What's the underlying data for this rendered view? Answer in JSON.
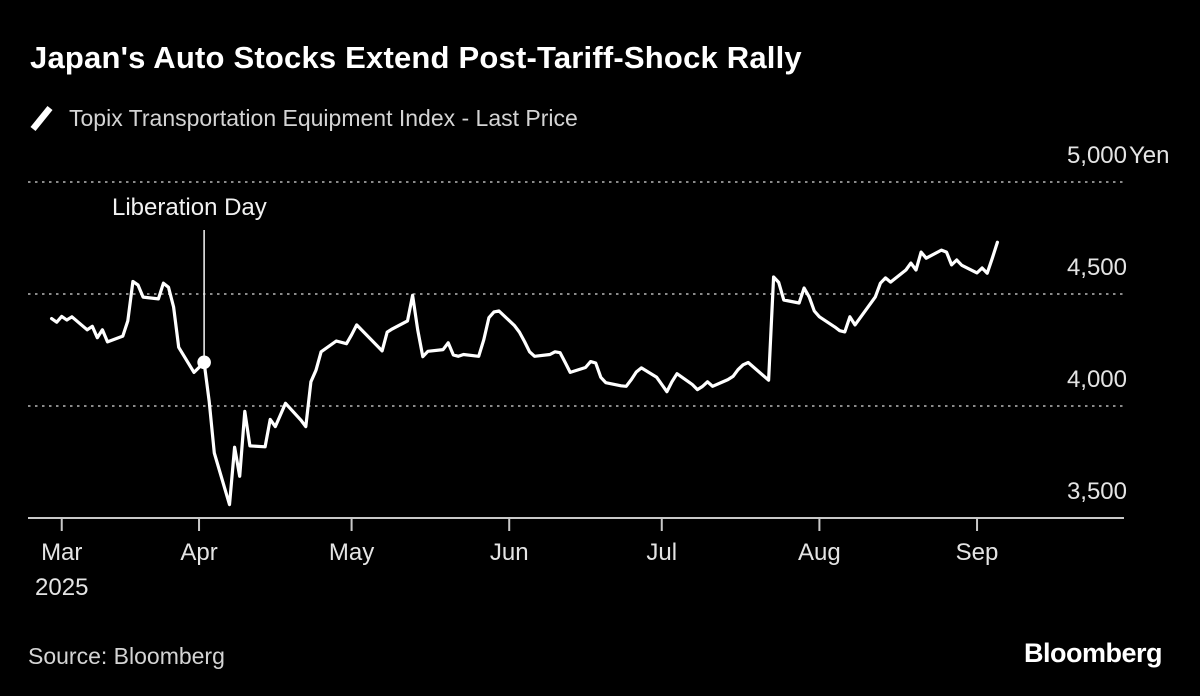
{
  "title": "Japan's Auto Stocks Extend Post-Tariff-Shock Rally",
  "legend": {
    "label": "Topix Transportation Equipment Index - Last Price"
  },
  "footer": {
    "source": "Source: Bloomberg",
    "logo": "Bloomberg"
  },
  "colors": {
    "background": "#000000",
    "line": "#ffffff",
    "grid": "#8a8a8a",
    "axis": "#c9c9c9",
    "text_primary": "#ffffff",
    "text_secondary": "#d4d4d4",
    "tick_label": "#e4e4e4"
  },
  "chart_data": {
    "type": "line",
    "title": "Japan's Auto Stocks Extend Post-Tariff-Shock Rally",
    "series_name": "Topix Transportation Equipment Index - Last Price",
    "unit": "Yen",
    "ylim": [
      3500,
      5000
    ],
    "grid": "dotted-horizontal",
    "legend_position": "top-left",
    "y_ticks": [
      {
        "label": "5,000",
        "suffix": "Yen",
        "value": 5000
      },
      {
        "label": "4,500",
        "value": 4500
      },
      {
        "label": "4,000",
        "value": 4000
      },
      {
        "label": "3,500",
        "value": 3500
      }
    ],
    "x_ticks": [
      {
        "label": "Mar",
        "sublabel": "2025",
        "date": "2025-03-05"
      },
      {
        "label": "Apr",
        "date": "2025-04-01"
      },
      {
        "label": "May",
        "date": "2025-05-01"
      },
      {
        "label": "Jun",
        "date": "2025-06-01"
      },
      {
        "label": "Jul",
        "date": "2025-07-01"
      },
      {
        "label": "Aug",
        "date": "2025-08-01"
      },
      {
        "label": "Sep",
        "date": "2025-09-01"
      }
    ],
    "annotation": {
      "text": "Liberation Day",
      "date": "2025-04-02",
      "value": 4195
    },
    "points": [
      [
        "2025-03-03",
        4390
      ],
      [
        "2025-03-04",
        4374
      ],
      [
        "2025-03-05",
        4400
      ],
      [
        "2025-03-06",
        4384
      ],
      [
        "2025-03-07",
        4398
      ],
      [
        "2025-03-10",
        4340
      ],
      [
        "2025-03-11",
        4356
      ],
      [
        "2025-03-12",
        4305
      ],
      [
        "2025-03-13",
        4340
      ],
      [
        "2025-03-14",
        4286
      ],
      [
        "2025-03-17",
        4312
      ],
      [
        "2025-03-18",
        4380
      ],
      [
        "2025-03-19",
        4556
      ],
      [
        "2025-03-20",
        4540
      ],
      [
        "2025-03-21",
        4486
      ],
      [
        "2025-03-24",
        4478
      ],
      [
        "2025-03-25",
        4548
      ],
      [
        "2025-03-26",
        4530
      ],
      [
        "2025-03-27",
        4442
      ],
      [
        "2025-03-28",
        4262
      ],
      [
        "2025-03-31",
        4150
      ],
      [
        "2025-04-01",
        4172
      ],
      [
        "2025-04-02",
        4195
      ],
      [
        "2025-04-03",
        4020
      ],
      [
        "2025-04-04",
        3790
      ],
      [
        "2025-04-07",
        3560
      ],
      [
        "2025-04-08",
        3816
      ],
      [
        "2025-04-09",
        3686
      ],
      [
        "2025-04-10",
        3976
      ],
      [
        "2025-04-11",
        3822
      ],
      [
        "2025-04-14",
        3818
      ],
      [
        "2025-04-15",
        3940
      ],
      [
        "2025-04-16",
        3908
      ],
      [
        "2025-04-17",
        3960
      ],
      [
        "2025-04-18",
        4012
      ],
      [
        "2025-04-21",
        3938
      ],
      [
        "2025-04-22",
        3908
      ],
      [
        "2025-04-23",
        4108
      ],
      [
        "2025-04-24",
        4160
      ],
      [
        "2025-04-25",
        4242
      ],
      [
        "2025-04-28",
        4290
      ],
      [
        "2025-04-30",
        4278
      ],
      [
        "2025-05-01",
        4318
      ],
      [
        "2025-05-02",
        4362
      ],
      [
        "2025-05-07",
        4246
      ],
      [
        "2025-05-08",
        4330
      ],
      [
        "2025-05-09",
        4344
      ],
      [
        "2025-05-12",
        4380
      ],
      [
        "2025-05-13",
        4494
      ],
      [
        "2025-05-14",
        4340
      ],
      [
        "2025-05-15",
        4220
      ],
      [
        "2025-05-16",
        4244
      ],
      [
        "2025-05-19",
        4252
      ],
      [
        "2025-05-20",
        4282
      ],
      [
        "2025-05-21",
        4228
      ],
      [
        "2025-05-22",
        4222
      ],
      [
        "2025-05-23",
        4230
      ],
      [
        "2025-05-26",
        4222
      ],
      [
        "2025-05-27",
        4296
      ],
      [
        "2025-05-28",
        4394
      ],
      [
        "2025-05-29",
        4420
      ],
      [
        "2025-05-30",
        4424
      ],
      [
        "2025-06-02",
        4360
      ],
      [
        "2025-06-03",
        4330
      ],
      [
        "2025-06-04",
        4288
      ],
      [
        "2025-06-05",
        4242
      ],
      [
        "2025-06-06",
        4222
      ],
      [
        "2025-06-09",
        4230
      ],
      [
        "2025-06-10",
        4242
      ],
      [
        "2025-06-11",
        4238
      ],
      [
        "2025-06-12",
        4194
      ],
      [
        "2025-06-13",
        4150
      ],
      [
        "2025-06-16",
        4172
      ],
      [
        "2025-06-17",
        4198
      ],
      [
        "2025-06-18",
        4192
      ],
      [
        "2025-06-19",
        4128
      ],
      [
        "2025-06-20",
        4104
      ],
      [
        "2025-06-23",
        4090
      ],
      [
        "2025-06-24",
        4088
      ],
      [
        "2025-06-25",
        4118
      ],
      [
        "2025-06-26",
        4152
      ],
      [
        "2025-06-27",
        4170
      ],
      [
        "2025-06-30",
        4128
      ],
      [
        "2025-07-01",
        4096
      ],
      [
        "2025-07-02",
        4064
      ],
      [
        "2025-07-03",
        4108
      ],
      [
        "2025-07-04",
        4144
      ],
      [
        "2025-07-07",
        4096
      ],
      [
        "2025-07-08",
        4073
      ],
      [
        "2025-07-09",
        4087
      ],
      [
        "2025-07-10",
        4108
      ],
      [
        "2025-07-11",
        4088
      ],
      [
        "2025-07-14",
        4118
      ],
      [
        "2025-07-15",
        4132
      ],
      [
        "2025-07-16",
        4162
      ],
      [
        "2025-07-17",
        4184
      ],
      [
        "2025-07-18",
        4194
      ],
      [
        "2025-07-22",
        4115
      ],
      [
        "2025-07-23",
        4576
      ],
      [
        "2025-07-24",
        4552
      ],
      [
        "2025-07-25",
        4473
      ],
      [
        "2025-07-28",
        4460
      ],
      [
        "2025-07-29",
        4527
      ],
      [
        "2025-07-30",
        4487
      ],
      [
        "2025-07-31",
        4424
      ],
      [
        "2025-08-01",
        4398
      ],
      [
        "2025-08-04",
        4353
      ],
      [
        "2025-08-05",
        4336
      ],
      [
        "2025-08-06",
        4331
      ],
      [
        "2025-08-07",
        4398
      ],
      [
        "2025-08-08",
        4362
      ],
      [
        "2025-08-12",
        4487
      ],
      [
        "2025-08-13",
        4548
      ],
      [
        "2025-08-14",
        4572
      ],
      [
        "2025-08-15",
        4553
      ],
      [
        "2025-08-18",
        4607
      ],
      [
        "2025-08-19",
        4638
      ],
      [
        "2025-08-20",
        4607
      ],
      [
        "2025-08-21",
        4687
      ],
      [
        "2025-08-22",
        4660
      ],
      [
        "2025-08-25",
        4696
      ],
      [
        "2025-08-26",
        4687
      ],
      [
        "2025-08-27",
        4630
      ],
      [
        "2025-08-28",
        4652
      ],
      [
        "2025-08-29",
        4628
      ],
      [
        "2025-09-01",
        4594
      ],
      [
        "2025-09-02",
        4616
      ],
      [
        "2025-09-03",
        4593
      ],
      [
        "2025-09-04",
        4660
      ],
      [
        "2025-09-05",
        4731
      ]
    ]
  }
}
